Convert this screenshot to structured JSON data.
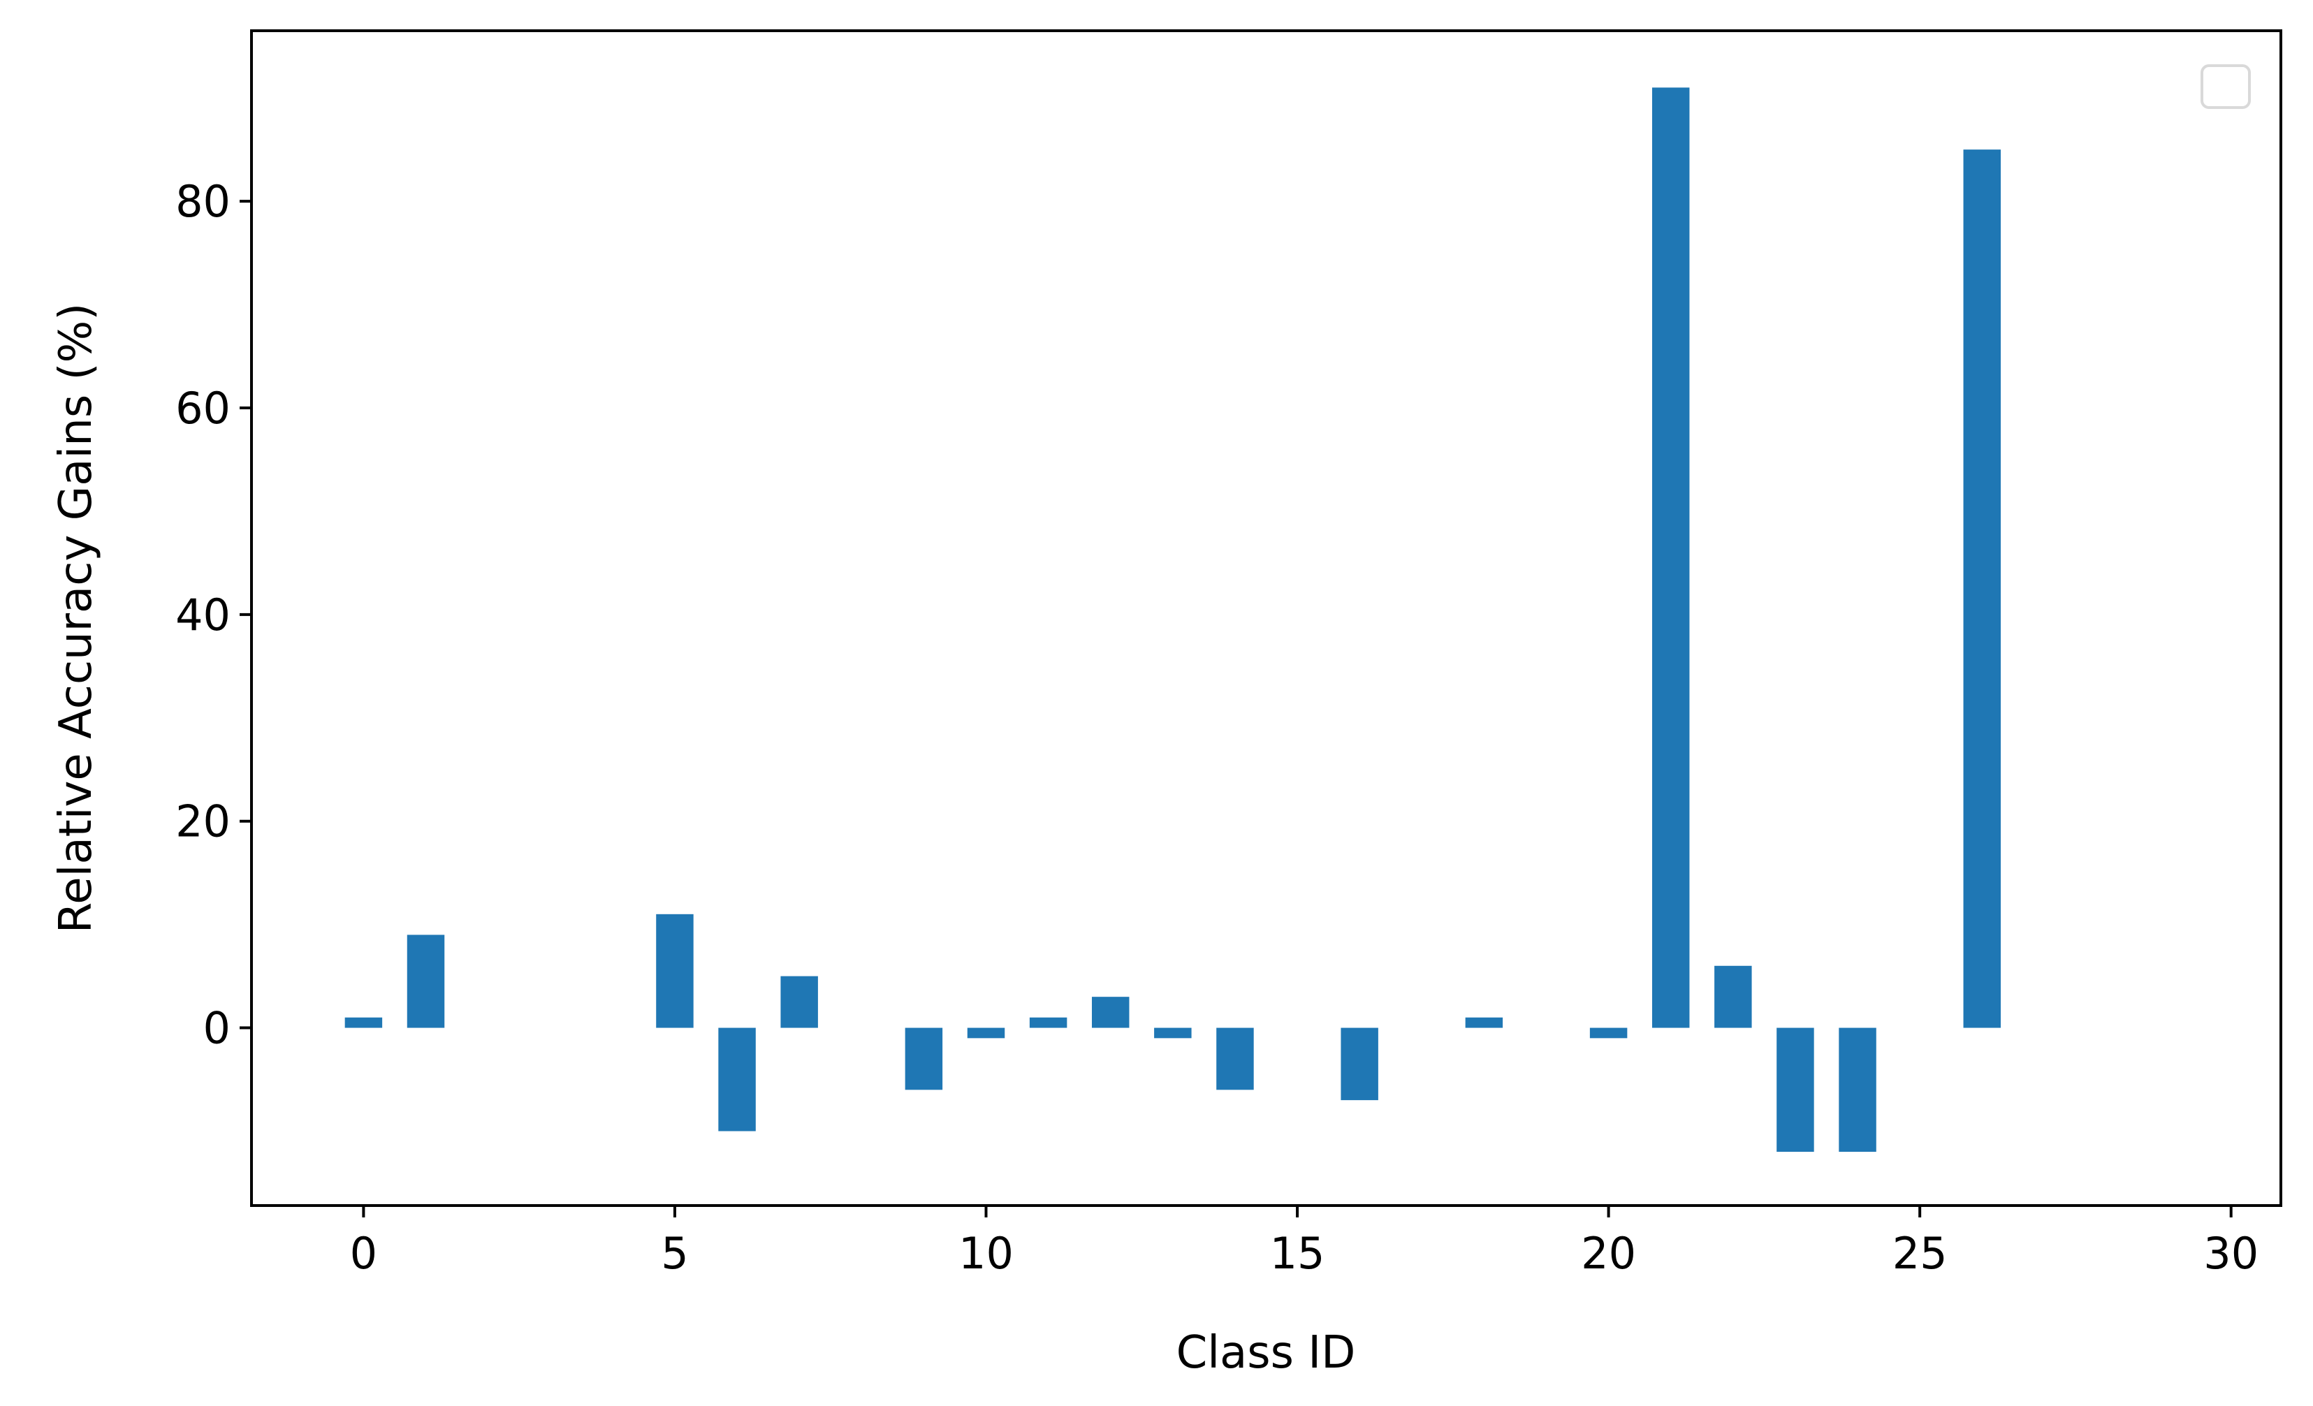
{
  "chart_data": {
    "type": "bar",
    "title": "",
    "xlabel": "Class ID",
    "ylabel": "Relative Accuracy Gains (%)",
    "xlim": [
      -1.8,
      30.8
    ],
    "ylim": [
      -17.2,
      96.5
    ],
    "x_ticks": [
      0,
      5,
      10,
      15,
      20,
      25,
      30
    ],
    "y_ticks": [
      0,
      20,
      40,
      60,
      80
    ],
    "x_tick_labels": [
      "0",
      "5",
      "10",
      "15",
      "20",
      "25",
      "30"
    ],
    "y_tick_labels": [
      "0",
      "20",
      "40",
      "60",
      "80"
    ],
    "bar_color": "#1f77b4",
    "bar_width": 0.6,
    "grid": false,
    "legend": {
      "placement": "top-right",
      "entries": []
    },
    "bars": [
      {
        "x": 0,
        "y": 1
      },
      {
        "x": 1,
        "y": 9
      },
      {
        "x": 5,
        "y": 11
      },
      {
        "x": 6,
        "y": -10
      },
      {
        "x": 7,
        "y": 5
      },
      {
        "x": 9,
        "y": -6
      },
      {
        "x": 10,
        "y": -1
      },
      {
        "x": 11,
        "y": 1
      },
      {
        "x": 12,
        "y": 3
      },
      {
        "x": 13,
        "y": -1
      },
      {
        "x": 14,
        "y": -6
      },
      {
        "x": 16,
        "y": -7
      },
      {
        "x": 18,
        "y": 1
      },
      {
        "x": 20,
        "y": -1
      },
      {
        "x": 21,
        "y": 91
      },
      {
        "x": 22,
        "y": 6
      },
      {
        "x": 23,
        "y": -12
      },
      {
        "x": 24,
        "y": -12
      },
      {
        "x": 26,
        "y": 85
      }
    ]
  }
}
